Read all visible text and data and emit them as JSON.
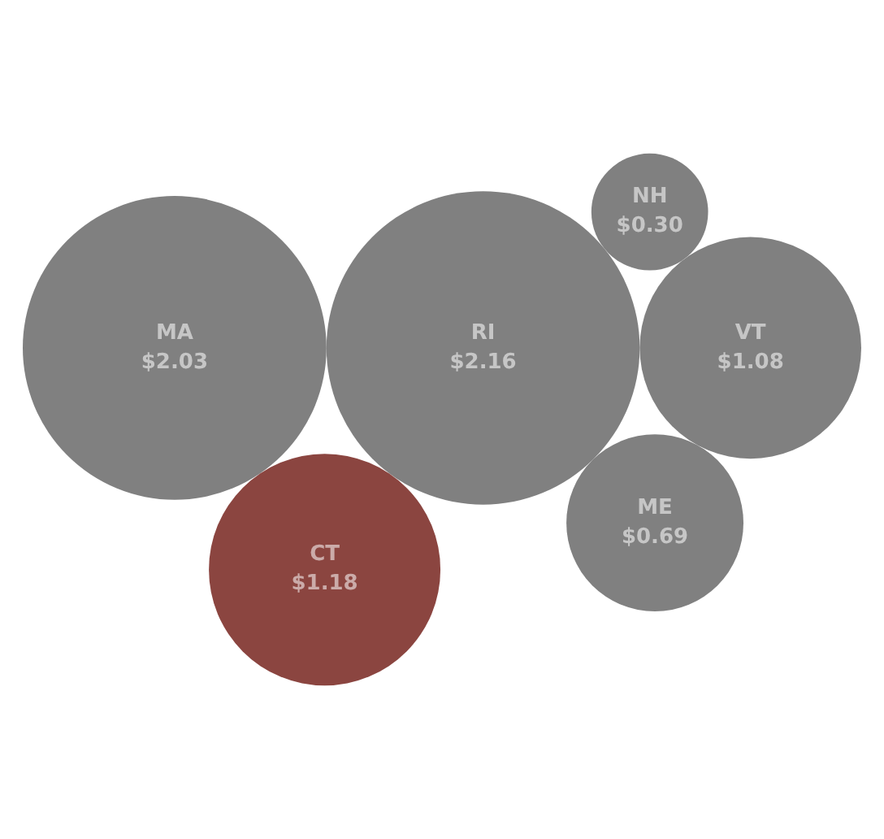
{
  "chart_data": {
    "type": "other",
    "categories": [
      "RI",
      "VT",
      "MA",
      "ME",
      "NH",
      "CT"
    ],
    "values": [
      2.16,
      1.08,
      2.03,
      0.69,
      0.3,
      1.18
    ],
    "value_labels": [
      "$2.16",
      "$1.08",
      "$2.03",
      "$0.69",
      "$0.30",
      "$1.18"
    ],
    "colors": [
      "#808080",
      "#808080",
      "#808080",
      "#808080",
      "#808080",
      "#8b4540"
    ]
  }
}
